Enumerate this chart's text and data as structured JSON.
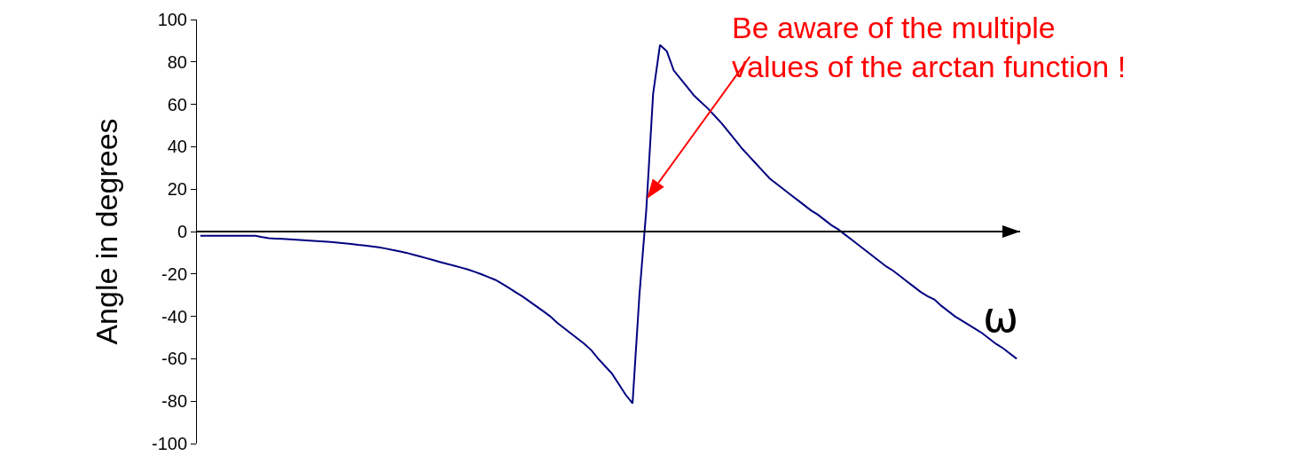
{
  "chart_data": {
    "type": "line",
    "ylabel": "Angle in degrees",
    "xlabel": "ω",
    "categories": [
      null,
      null,
      null,
      null,
      null,
      null,
      null,
      null,
      null,
      null,
      null,
      null,
      null,
      null,
      null,
      null,
      null,
      null,
      null,
      null,
      null,
      null,
      null,
      null,
      null,
      null,
      null,
      null,
      null,
      null,
      null,
      null,
      null,
      null,
      null,
      null,
      null,
      null,
      null,
      null,
      null,
      null,
      null,
      null,
      null,
      null,
      null,
      null,
      null,
      null,
      null,
      null,
      null,
      null,
      null,
      null,
      null,
      null,
      null,
      null,
      null,
      null,
      null,
      null,
      null,
      null,
      null,
      null,
      null,
      null,
      null,
      null,
      null,
      null,
      null,
      null,
      null,
      null,
      null,
      null,
      null,
      null,
      null,
      null,
      null,
      null,
      null,
      null,
      null,
      null,
      null,
      null,
      null,
      null,
      null,
      null,
      null,
      null,
      null,
      null,
      null,
      null,
      null,
      null,
      null,
      null,
      null,
      null,
      null,
      null,
      null,
      null,
      null,
      null,
      null,
      null,
      null,
      null,
      null,
      null
    ],
    "series": [
      {
        "color": "#000080",
        "values": [
          -2,
          -2,
          -2,
          -2,
          -2,
          -2,
          -2,
          -2,
          -2,
          -2.6,
          -3.1,
          -3.3,
          -3.5,
          -3.7,
          -3.9,
          -4.1,
          -4.3,
          -4.5,
          -4.7,
          -4.9,
          -5.2,
          -5.5,
          -5.9,
          -6.3,
          -6.6,
          -7,
          -7.4,
          -8,
          -8.7,
          -9.3,
          -10,
          -10.9,
          -11.7,
          -12.6,
          -13.5,
          -14.4,
          -15.3,
          -16.1,
          -17,
          -17.9,
          -19,
          -20.2,
          -21.5,
          -22.8,
          -24.6,
          -26.6,
          -28.7,
          -30.7,
          -33,
          -35.3,
          -37.6,
          -40,
          -43,
          -45.5,
          -48,
          -50.5,
          -53,
          -56,
          -60,
          -63.5,
          -67,
          -72,
          -77,
          -81,
          -30,
          10,
          65,
          88,
          85,
          76,
          72,
          68,
          64,
          61,
          58,
          54.5,
          51,
          47,
          43,
          39,
          35.5,
          32,
          28.5,
          25,
          22.5,
          20,
          17.5,
          15,
          12.5,
          10,
          8,
          5.5,
          3,
          1,
          -1.5,
          -4,
          -6.5,
          -9,
          -11.5,
          -14,
          -16.5,
          -18.5,
          -21,
          -23.5,
          -26,
          -28.5,
          -30.5,
          -32,
          -35,
          -37.5,
          -40,
          -42,
          -44,
          -46,
          -48,
          -50.5,
          -53,
          -55,
          -57.5,
          -60
        ]
      }
    ],
    "ylim": [
      -100,
      100
    ],
    "yticks": [
      -100,
      -80,
      -60,
      -40,
      -20,
      0,
      20,
      40,
      60,
      80,
      100
    ],
    "marker": "none",
    "line_style": "solid",
    "annotations": [
      "Be aware of the multiple\nvalues of the arctan function !"
    ]
  }
}
